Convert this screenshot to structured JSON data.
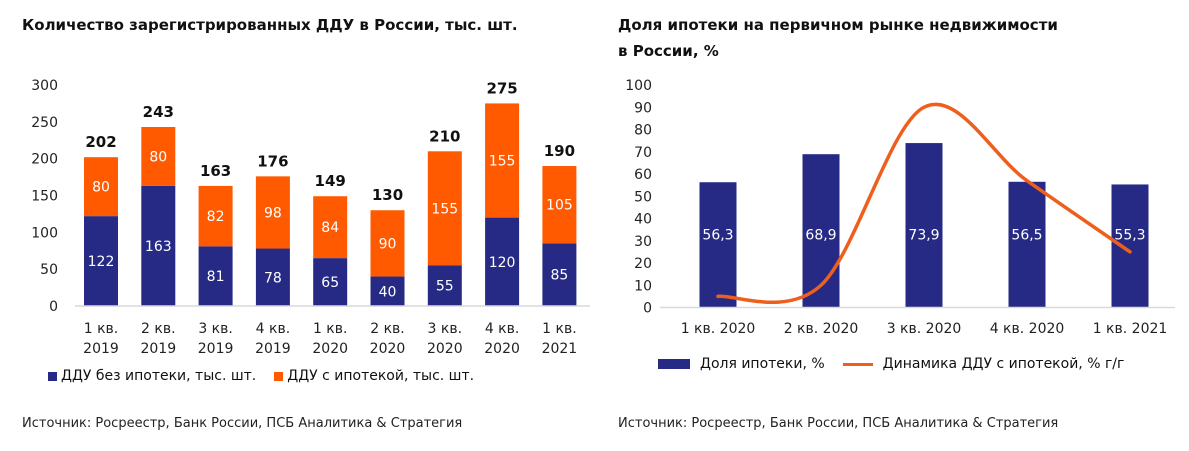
{
  "colors": {
    "navy": "#262a84",
    "orange": "#ff5a00",
    "line": "#ee5f1e",
    "axis": "#d9d9d9"
  },
  "chart_data": [
    {
      "type": "bar",
      "stacked": true,
      "title": "Количество зарегистрированных ДДУ в России, тыс. шт.",
      "categories": [
        [
          "1 кв.",
          "2019"
        ],
        [
          "2 кв.",
          "2019"
        ],
        [
          "3 кв.",
          "2019"
        ],
        [
          "4 кв.",
          "2019"
        ],
        [
          "1 кв.",
          "2020"
        ],
        [
          "2 кв.",
          "2020"
        ],
        [
          "3 кв.",
          "2020"
        ],
        [
          "4 кв.",
          "2020"
        ],
        [
          "1 кв.",
          "2021"
        ]
      ],
      "series": [
        {
          "name": "ДДУ без ипотеки, тыс. шт.",
          "color": "#262a84",
          "values": [
            122,
            163,
            81,
            78,
            65,
            40,
            55,
            120,
            85
          ]
        },
        {
          "name": "ДДУ с ипотекой, тыс. шт.",
          "color": "#ff5a00",
          "values": [
            80,
            80,
            82,
            98,
            84,
            90,
            155,
            155,
            105
          ]
        }
      ],
      "totals": [
        202,
        243,
        163,
        176,
        149,
        130,
        210,
        275,
        190
      ],
      "ylim": [
        0,
        300
      ],
      "yticks": [
        0,
        50,
        100,
        150,
        200,
        250,
        300
      ],
      "grid": false,
      "legend": "bottom",
      "source": "Источник: Росреестр, Банк России, ПСБ Аналитика & Стратегия"
    },
    {
      "type": "bar+line",
      "title": [
        "Доля  ипотеки на первичном рынке недвижимости",
        "в России, %"
      ],
      "categories": [
        "1 кв. 2020",
        "2 кв. 2020",
        "3 кв. 2020",
        "4 кв. 2020",
        "1 кв. 2021"
      ],
      "series": [
        {
          "name": "Доля ипотеки, %",
          "type": "bar",
          "color": "#262a84",
          "values": [
            56.3,
            68.9,
            73.9,
            56.5,
            55.3
          ],
          "labels": [
            "56,3",
            "68,9",
            "73,9",
            "56,5",
            "55,3"
          ]
        },
        {
          "name": "Динамика ДДУ с ипотекой, % г/г",
          "type": "line",
          "smooth": true,
          "color": "#ee5f1e",
          "values": [
            5,
            10,
            90,
            57,
            25
          ]
        }
      ],
      "ylim": [
        0,
        100
      ],
      "yticks": [
        0,
        10,
        20,
        30,
        40,
        50,
        60,
        70,
        80,
        90,
        100
      ],
      "grid": false,
      "legend": "bottom",
      "source": "Источник: Росреестр, Банк России, ПСБ Аналитика & Стратегия"
    }
  ]
}
